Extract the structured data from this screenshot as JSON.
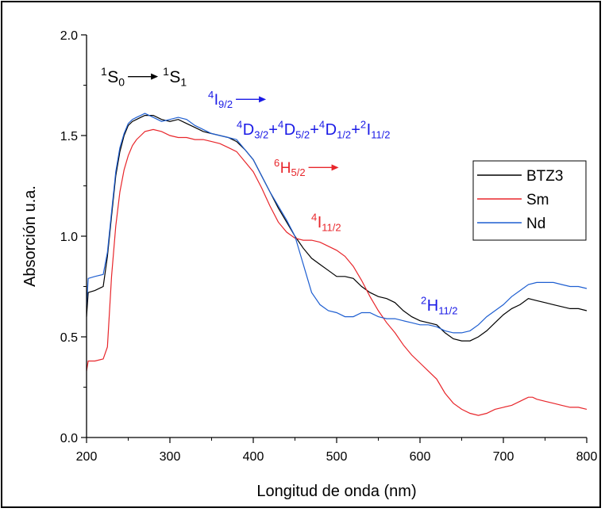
{
  "chart_data": {
    "type": "line",
    "title": "",
    "xlabel": "Longitud de onda (nm)",
    "ylabel": "Absorción u.a.",
    "xlim": [
      200,
      800
    ],
    "ylim": [
      0.0,
      2.0
    ],
    "x_ticks": [
      200,
      300,
      400,
      500,
      600,
      700,
      800
    ],
    "y_ticks": [
      "0.0",
      "0.5",
      "1.0",
      "1.5",
      "2.0"
    ],
    "grid": false,
    "legend_position": "right",
    "series": [
      {
        "name": "BTZ3",
        "color": "#000000",
        "x": [
          200,
          202,
          210,
          220,
          225,
          230,
          235,
          240,
          245,
          250,
          255,
          260,
          265,
          270,
          280,
          290,
          300,
          310,
          320,
          330,
          340,
          350,
          360,
          370,
          380,
          390,
          400,
          410,
          420,
          430,
          440,
          450,
          460,
          470,
          480,
          490,
          500,
          510,
          520,
          530,
          540,
          550,
          560,
          570,
          580,
          590,
          600,
          610,
          620,
          630,
          640,
          650,
          660,
          670,
          680,
          690,
          700,
          710,
          720,
          730,
          740,
          750,
          760,
          770,
          780,
          790,
          800
        ],
        "y": [
          0.6,
          0.72,
          0.73,
          0.75,
          0.9,
          1.1,
          1.3,
          1.42,
          1.5,
          1.55,
          1.57,
          1.58,
          1.59,
          1.6,
          1.6,
          1.58,
          1.57,
          1.58,
          1.56,
          1.54,
          1.52,
          1.51,
          1.5,
          1.49,
          1.47,
          1.43,
          1.38,
          1.3,
          1.22,
          1.14,
          1.07,
          1.0,
          0.94,
          0.89,
          0.86,
          0.83,
          0.8,
          0.8,
          0.79,
          0.75,
          0.72,
          0.7,
          0.69,
          0.67,
          0.63,
          0.6,
          0.58,
          0.57,
          0.56,
          0.52,
          0.49,
          0.48,
          0.48,
          0.5,
          0.53,
          0.57,
          0.61,
          0.64,
          0.66,
          0.69,
          0.68,
          0.67,
          0.66,
          0.65,
          0.64,
          0.64,
          0.63
        ]
      },
      {
        "name": "Sm",
        "color": "#e8262b",
        "x": [
          200,
          202,
          210,
          220,
          225,
          230,
          235,
          240,
          245,
          250,
          255,
          260,
          265,
          270,
          280,
          290,
          300,
          310,
          320,
          330,
          340,
          350,
          360,
          370,
          380,
          390,
          400,
          410,
          420,
          430,
          440,
          450,
          460,
          470,
          480,
          490,
          500,
          510,
          520,
          530,
          540,
          550,
          560,
          570,
          580,
          590,
          600,
          610,
          620,
          630,
          640,
          650,
          660,
          670,
          680,
          690,
          700,
          710,
          720,
          725,
          730,
          735,
          740,
          750,
          760,
          770,
          780,
          790,
          800
        ],
        "y": [
          0.33,
          0.38,
          0.38,
          0.39,
          0.45,
          0.8,
          1.05,
          1.22,
          1.33,
          1.4,
          1.45,
          1.48,
          1.5,
          1.52,
          1.53,
          1.52,
          1.5,
          1.49,
          1.49,
          1.48,
          1.48,
          1.47,
          1.46,
          1.44,
          1.42,
          1.37,
          1.32,
          1.24,
          1.15,
          1.07,
          1.02,
          0.99,
          0.98,
          0.98,
          0.97,
          0.95,
          0.93,
          0.9,
          0.85,
          0.78,
          0.7,
          0.63,
          0.57,
          0.52,
          0.46,
          0.41,
          0.37,
          0.33,
          0.29,
          0.22,
          0.17,
          0.14,
          0.12,
          0.11,
          0.12,
          0.14,
          0.15,
          0.16,
          0.18,
          0.19,
          0.2,
          0.2,
          0.19,
          0.18,
          0.17,
          0.16,
          0.15,
          0.15,
          0.14
        ]
      },
      {
        "name": "Nd",
        "color": "#1f5fd1",
        "x": [
          200,
          202,
          210,
          220,
          225,
          230,
          235,
          240,
          245,
          250,
          255,
          260,
          265,
          270,
          280,
          290,
          300,
          310,
          320,
          330,
          340,
          350,
          360,
          370,
          380,
          390,
          400,
          410,
          420,
          430,
          440,
          450,
          460,
          470,
          480,
          490,
          500,
          510,
          520,
          530,
          540,
          550,
          560,
          570,
          580,
          590,
          600,
          610,
          620,
          630,
          640,
          650,
          660,
          670,
          680,
          690,
          700,
          710,
          720,
          730,
          740,
          750,
          760,
          770,
          780,
          790,
          800
        ],
        "y": [
          0.65,
          0.79,
          0.8,
          0.81,
          0.92,
          1.12,
          1.32,
          1.44,
          1.51,
          1.56,
          1.58,
          1.59,
          1.6,
          1.61,
          1.59,
          1.57,
          1.58,
          1.59,
          1.58,
          1.55,
          1.53,
          1.51,
          1.5,
          1.49,
          1.48,
          1.43,
          1.38,
          1.3,
          1.22,
          1.15,
          1.08,
          1.0,
          0.86,
          0.72,
          0.66,
          0.63,
          0.62,
          0.6,
          0.6,
          0.62,
          0.62,
          0.6,
          0.59,
          0.59,
          0.58,
          0.57,
          0.56,
          0.56,
          0.55,
          0.53,
          0.52,
          0.52,
          0.53,
          0.56,
          0.6,
          0.63,
          0.66,
          0.7,
          0.73,
          0.76,
          0.77,
          0.77,
          0.77,
          0.76,
          0.75,
          0.75,
          0.74
        ]
      }
    ],
    "annotations": [
      {
        "id": "s0s1",
        "color": "#000000",
        "parts": [
          [
            "sup",
            "1"
          ],
          [
            "base",
            "S"
          ],
          [
            "sub",
            "0"
          ],
          [
            "arrow",
            ""
          ],
          [
            "sup",
            "1"
          ],
          [
            "base",
            "S"
          ],
          [
            "sub",
            "1"
          ]
        ]
      },
      {
        "id": "i92",
        "color": "#1a1ae6",
        "parts": [
          [
            "sup",
            "4"
          ],
          [
            "base",
            "I"
          ],
          [
            "sub",
            "9/2"
          ],
          [
            "arrow",
            ""
          ]
        ]
      },
      {
        "id": "d32",
        "color": "#1a1ae6",
        "parts": [
          [
            "sup",
            "4"
          ],
          [
            "base",
            "D"
          ],
          [
            "sub",
            "3/2"
          ],
          [
            "base",
            " + "
          ],
          [
            "sup",
            "4"
          ],
          [
            "base",
            "D"
          ],
          [
            "sub",
            "5/2"
          ],
          [
            "base",
            " + "
          ],
          [
            "sup",
            "4"
          ],
          [
            "base",
            "D"
          ],
          [
            "sub",
            "1/2"
          ],
          [
            "base",
            " + "
          ],
          [
            "sup",
            "2"
          ],
          [
            "base",
            "I"
          ],
          [
            "sub",
            "11/2"
          ]
        ]
      },
      {
        "id": "h52",
        "color": "#e8262b",
        "parts": [
          [
            "sup",
            "6"
          ],
          [
            "base",
            "H"
          ],
          [
            "sub",
            "5/2"
          ],
          [
            "arrow",
            ""
          ]
        ]
      },
      {
        "id": "i112",
        "color": "#e8262b",
        "parts": [
          [
            "sup",
            "4"
          ],
          [
            "base",
            "I"
          ],
          [
            "sub",
            "11/2"
          ]
        ]
      },
      {
        "id": "h112",
        "color": "#1a1ae6",
        "parts": [
          [
            "sup",
            "2"
          ],
          [
            "base",
            "H"
          ],
          [
            "sub",
            "11/2"
          ]
        ]
      }
    ]
  }
}
